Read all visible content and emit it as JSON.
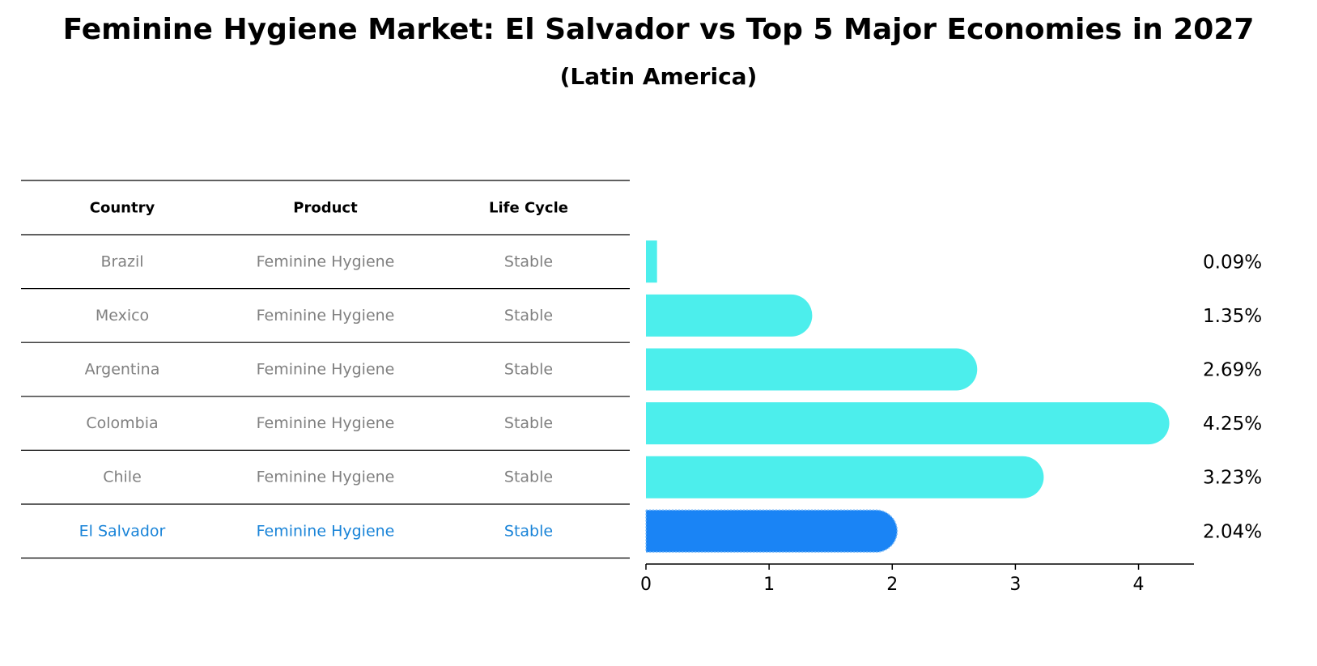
{
  "chart_data": {
    "type": "bar",
    "orientation": "horizontal",
    "title": "Feminine Hygiene Market: El Salvador vs Top 5 Major Economies in 2027",
    "subtitle": "(Latin America)",
    "table": {
      "columns": [
        "Country",
        "Product",
        "Life Cycle"
      ],
      "rows": [
        {
          "country": "Brazil",
          "product": "Feminine Hygiene",
          "life_cycle": "Stable"
        },
        {
          "country": "Mexico",
          "product": "Feminine Hygiene",
          "life_cycle": "Stable"
        },
        {
          "country": "Argentina",
          "product": "Feminine Hygiene",
          "life_cycle": "Stable"
        },
        {
          "country": "Colombia",
          "product": "Feminine Hygiene",
          "life_cycle": "Stable"
        },
        {
          "country": "Chile",
          "product": "Feminine Hygiene",
          "life_cycle": "Stable"
        },
        {
          "country": "El Salvador",
          "product": "Feminine Hygiene",
          "life_cycle": "Stable"
        }
      ]
    },
    "categories": [
      "Brazil",
      "Mexico",
      "Argentina",
      "Colombia",
      "Chile",
      "El Salvador"
    ],
    "values": [
      0.09,
      1.35,
      2.69,
      4.25,
      3.23,
      2.04
    ],
    "value_labels": [
      "0.09%",
      "1.35%",
      "2.69%",
      "4.25%",
      "3.23%",
      "2.04%"
    ],
    "highlight": "El Salvador",
    "xlim": [
      0,
      4.45
    ],
    "xticks": [
      0,
      1,
      2,
      3,
      4
    ],
    "xlabel": "",
    "ylabel": "",
    "grid": false,
    "colors": {
      "bar": "#4ceeec",
      "highlight_bar": "#1a84f5",
      "cell_text": "#808080",
      "highlight_text": "#1a84d8"
    }
  }
}
